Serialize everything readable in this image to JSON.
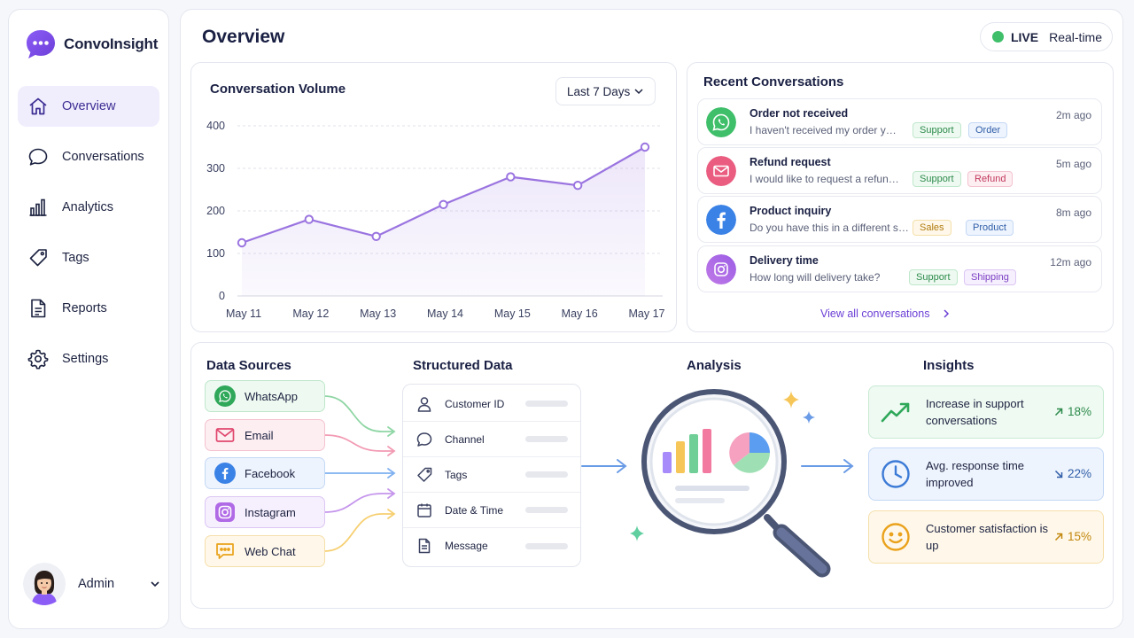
{
  "brand": {
    "name": "ConvoInsight"
  },
  "sidebar": {
    "items": [
      {
        "label": "Overview",
        "icon": "home-icon",
        "active": true
      },
      {
        "label": "Conversations",
        "icon": "chat-bubble-icon"
      },
      {
        "label": "Analytics",
        "icon": "bar-chart-icon"
      },
      {
        "label": "Tags",
        "icon": "tag-icon"
      },
      {
        "label": "Reports",
        "icon": "document-icon"
      },
      {
        "label": "Settings",
        "icon": "gear-icon"
      }
    ],
    "user": {
      "name": "Admin"
    }
  },
  "header": {
    "title": "Overview",
    "live_label": "LIVE",
    "live_sub": "Real-time",
    "live_color": "#3fbf6a"
  },
  "volume": {
    "title": "Conversation Volume",
    "range": "Last 7 Days"
  },
  "chart_data": {
    "type": "line",
    "categories": [
      "May 11",
      "May 12",
      "May 13",
      "May 14",
      "May 15",
      "May 16",
      "May 17"
    ],
    "values": [
      125,
      180,
      140,
      215,
      280,
      260,
      350
    ],
    "ylim": [
      0,
      400
    ],
    "yticks": [
      0,
      100,
      200,
      300,
      400
    ],
    "grid": true,
    "color": "#9a74e0"
  },
  "recent": {
    "title": "Recent Conversations",
    "items": [
      {
        "title": "Order not received",
        "preview": "I haven't received my order yet...",
        "time": "2m ago",
        "icon": "whatsapp-icon",
        "tags": [
          "Support",
          "Order"
        ]
      },
      {
        "title": "Refund request",
        "preview": "I would like to request a refund...",
        "time": "5m ago",
        "icon": "email-icon",
        "tags": [
          "Support",
          "Refund"
        ]
      },
      {
        "title": "Product inquiry",
        "preview": "Do you have this in a different size?",
        "time": "8m ago",
        "icon": "facebook-icon",
        "tags": [
          "Sales",
          "Product"
        ]
      },
      {
        "title": "Delivery time",
        "preview": "How long will delivery take?",
        "time": "12m ago",
        "icon": "instagram-icon",
        "tags": [
          "Support",
          "Shipping"
        ]
      }
    ],
    "view_all": "View all conversations"
  },
  "pipeline": {
    "sources_title": "Data Sources",
    "sources": [
      {
        "label": "WhatsApp",
        "icon": "whatsapp-icon",
        "color": "#3fbf6a"
      },
      {
        "label": "Email",
        "icon": "email-icon",
        "color": "#e8587a"
      },
      {
        "label": "Facebook",
        "icon": "facebook-icon",
        "color": "#3b82e6"
      },
      {
        "label": "Instagram",
        "icon": "instagram-icon",
        "color": "#a855e0"
      },
      {
        "label": "Web Chat",
        "icon": "web-chat-icon",
        "color": "#f2b83c"
      }
    ],
    "structured_title": "Structured Data",
    "fields": [
      {
        "label": "Customer ID",
        "icon": "user-icon"
      },
      {
        "label": "Channel",
        "icon": "chat-bubble-icon"
      },
      {
        "label": "Tags",
        "icon": "tag-icon"
      },
      {
        "label": "Date & Time",
        "icon": "calendar-icon"
      },
      {
        "label": "Message",
        "icon": "document-icon"
      }
    ],
    "analysis_title": "Analysis",
    "insights_title": "Insights",
    "insights": [
      {
        "text": "Increase in support conversations",
        "value": "18%",
        "direction": "up",
        "icon": "trend-up-icon"
      },
      {
        "text": "Avg. response time improved",
        "value": "22%",
        "direction": "down",
        "icon": "clock-icon"
      },
      {
        "text": "Customer satisfaction is up",
        "value": "15%",
        "direction": "up",
        "icon": "smiley-icon"
      }
    ]
  }
}
